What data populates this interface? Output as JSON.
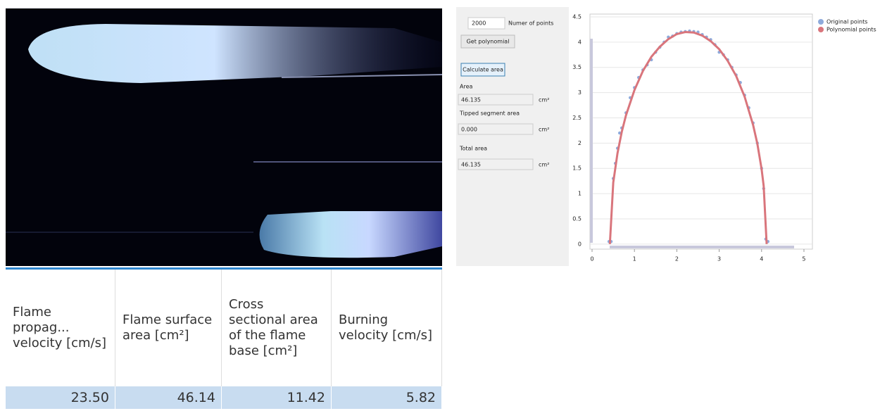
{
  "panel": {
    "points_input": "2000",
    "points_label": "Numer of points",
    "get_polynomial": "Get polynomial",
    "calculate_area": "Calculate area",
    "area_label": "Area",
    "area_value": "46.135",
    "area_unit": "cm²",
    "tipped_label": "Tipped segment area",
    "tipped_value": "0.000",
    "tipped_unit": "cm²",
    "total_label": "Total area",
    "total_value": "46.135",
    "total_unit": "cm²"
  },
  "table": {
    "header": [
      "Flame propag... velocity [cm/s]",
      "Flame surface area [cm²]",
      "Cross sectional area of the flame base [cm²]",
      "Burning velocity [cm/s]"
    ],
    "rows": [
      [
        "23.50",
        "46.14",
        "11.42",
        "5.82"
      ]
    ]
  },
  "chart_data": {
    "type": "scatter-line",
    "legend": "top-right",
    "xlim": [
      -0.05,
      5.2
    ],
    "ylim": [
      -0.1,
      4.5
    ],
    "xticks": [
      0,
      1,
      2,
      3,
      4,
      5
    ],
    "yticks": [
      0,
      0.5,
      1,
      1.5,
      2,
      2.5,
      3,
      3.5,
      4,
      4.5
    ],
    "series": [
      {
        "name": "Original points",
        "color": "#8eaadb",
        "mode": "markers",
        "x": [
          0.4,
          0.45,
          0.5,
          0.55,
          0.6,
          0.65,
          0.7,
          0.8,
          0.9,
          1.0,
          1.1,
          1.2,
          1.3,
          1.4,
          1.5,
          1.6,
          1.7,
          1.8,
          1.9,
          2.0,
          2.1,
          2.2,
          2.3,
          2.4,
          2.5,
          2.6,
          2.7,
          2.8,
          2.9,
          3.0,
          3.1,
          3.2,
          3.3,
          3.4,
          3.5,
          3.6,
          3.7,
          3.8,
          3.9,
          4.0,
          4.05,
          4.1,
          4.15
        ],
        "values": [
          0.05,
          0.05,
          1.3,
          1.6,
          1.9,
          2.2,
          2.3,
          2.6,
          2.9,
          3.1,
          3.3,
          3.45,
          3.55,
          3.65,
          3.8,
          3.9,
          4.0,
          4.1,
          4.12,
          4.17,
          4.2,
          4.21,
          4.22,
          4.21,
          4.2,
          4.15,
          4.1,
          4.05,
          3.95,
          3.8,
          3.75,
          3.65,
          3.5,
          3.35,
          3.2,
          2.95,
          2.7,
          2.4,
          2.0,
          1.5,
          1.1,
          0.1,
          0.05
        ]
      },
      {
        "name": "Polynomial points",
        "color": "#d9757c",
        "mode": "line",
        "x": [
          0.42,
          0.5,
          0.6,
          0.7,
          0.8,
          1.0,
          1.2,
          1.4,
          1.6,
          1.8,
          2.0,
          2.2,
          2.4,
          2.6,
          2.8,
          3.0,
          3.2,
          3.4,
          3.6,
          3.8,
          3.9,
          4.0,
          4.05,
          4.12
        ],
        "values": [
          0,
          1.22,
          1.8,
          2.22,
          2.55,
          3.05,
          3.43,
          3.71,
          3.91,
          4.06,
          4.16,
          4.2,
          4.19,
          4.13,
          4.02,
          3.86,
          3.63,
          3.33,
          2.92,
          2.36,
          1.99,
          1.49,
          1.15,
          0
        ]
      }
    ]
  }
}
